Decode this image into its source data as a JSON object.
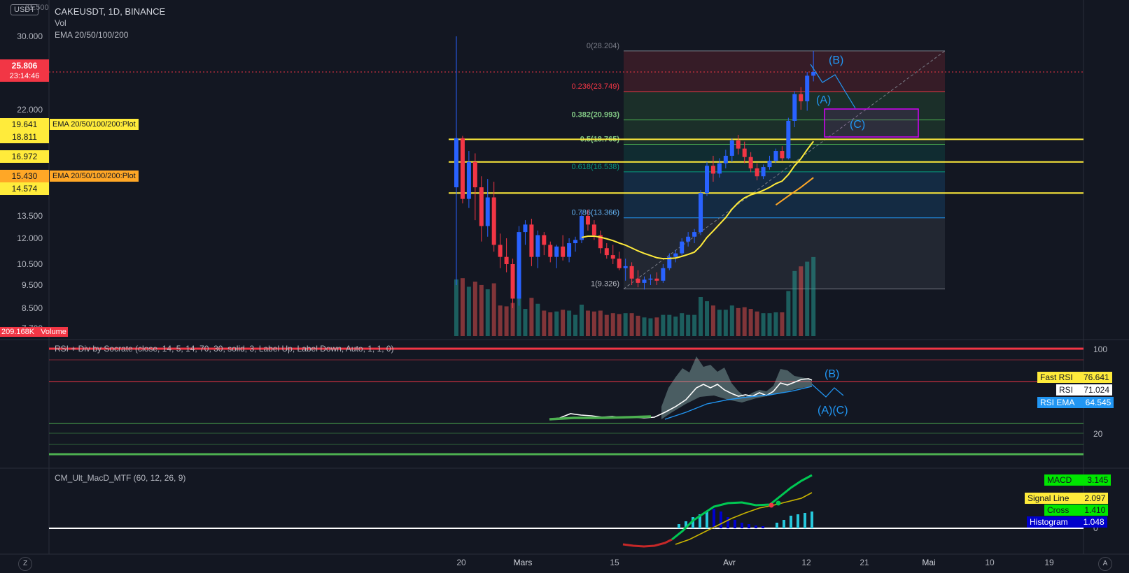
{
  "header": {
    "currency": "USDT",
    "symbol_line": "CAKEUSDT, 1D, BINANCE",
    "indicator_vol": "Vol",
    "indicator_ema": "EMA 20/50/100/200",
    "top_partial_price": "31.500"
  },
  "price_axis": {
    "ticks": [
      "30.000",
      "22.000",
      "13.500",
      "12.000",
      "10.500",
      "9.500",
      "8.500",
      "7.700"
    ],
    "current_price": "25.806",
    "countdown": "23:14:46",
    "volume_label": "209.168K",
    "volume_title": "Volume",
    "colors": {
      "current": "#f23645",
      "yellow": "#ffeb3b",
      "orange": "#ffa726"
    }
  },
  "ema_labels": [
    {
      "price": "19.641",
      "text": "EMA 20/50/100/200:Plot",
      "color": "#ffeb3b"
    },
    {
      "price": "18.811",
      "text": "",
      "color": "#ffeb3b"
    },
    {
      "price": "16.972",
      "text": "",
      "color": "#ffeb3b"
    },
    {
      "price": "15.430",
      "text": "EMA 20/50/100/200:Plot",
      "color": "#ffa726"
    },
    {
      "price": "14.574",
      "text": "",
      "color": "#ffeb3b"
    }
  ],
  "fib_levels": [
    {
      "label": "0(28.204)",
      "value": 28.204
    },
    {
      "label": "0.236(23.749)",
      "value": 23.749
    },
    {
      "label": "0.382(20.993)",
      "value": 20.993
    },
    {
      "label": "0.5(18.765)",
      "value": 18.765
    },
    {
      "label": "0.618(16.538)",
      "value": 16.538
    },
    {
      "label": "0.786(13.366)",
      "value": 13.366
    },
    {
      "label": "1(9.326)",
      "value": 9.326
    }
  ],
  "horizontal_lines": [
    19.2,
    17.3,
    15.0
  ],
  "wave_labels": {
    "b": "(B)",
    "a": "(A)",
    "c": "(C)"
  },
  "time_axis": {
    "labels": [
      "20",
      "Mars",
      "15",
      "Avr",
      "12",
      "21",
      "Mai",
      "10",
      "19"
    ]
  },
  "rsi": {
    "title": "RSI + Div by Socrate (close, 14, 5, 14, 70, 30, solid, 3, Label Up, Label Down, Auto, 1, 1, 0)",
    "axis_top": "100",
    "axis_bottom": "20",
    "wave_b": "(B)",
    "wave_ac": "(A)(C)",
    "labels": [
      {
        "key": "Fast RSI",
        "value": "76.641",
        "color": "#ffeb3b"
      },
      {
        "key": "RSI",
        "value": "71.024",
        "color": "#ffffff"
      },
      {
        "key": "RSI EMA",
        "value": "64.545",
        "color": "#2196f3"
      }
    ]
  },
  "macd": {
    "title": "CM_Ult_MacD_MTF (60, 12, 26, 9)",
    "axis_zero": "0",
    "labels": [
      {
        "key": "MACD",
        "value": "3.145",
        "color": "#00e600"
      },
      {
        "key": "Signal Line",
        "value": "2.097",
        "color": "#ffeb3b"
      },
      {
        "key": "Cross",
        "value": "1.410",
        "color": "#00e600"
      },
      {
        "key": "Histogram",
        "value": "1.048",
        "color": "#0000cc"
      }
    ]
  },
  "corner": {
    "left": "Z",
    "right": "A"
  },
  "chart_data": {
    "type": "candlestick",
    "title": "CAKEUSDT, 1D, BINANCE",
    "ylim": [
      7.7,
      31.5
    ],
    "x_labels": [
      "20",
      "Mars",
      "15",
      "Avr",
      "12",
      "21",
      "Mai",
      "10",
      "19"
    ],
    "last_close": 25.806,
    "candles": [
      [
        15.4,
        30.0,
        9.5,
        19.3
      ],
      [
        19.3,
        19.5,
        14.3,
        14.6
      ],
      [
        14.6,
        18.2,
        14.0,
        17.3
      ],
      [
        17.3,
        18.0,
        13.2,
        15.4
      ],
      [
        15.4,
        16.2,
        11.8,
        12.8
      ],
      [
        12.8,
        16.0,
        12.1,
        14.7
      ],
      [
        14.7,
        15.8,
        11.2,
        11.6
      ],
      [
        11.6,
        12.3,
        10.3,
        10.9
      ],
      [
        10.9,
        12.0,
        10.1,
        10.5
      ],
      [
        10.5,
        10.8,
        8.5,
        8.9
      ],
      [
        8.9,
        12.8,
        8.6,
        12.4
      ],
      [
        12.4,
        13.2,
        11.6,
        12.9
      ],
      [
        12.9,
        13.3,
        10.4,
        10.9
      ],
      [
        10.9,
        12.5,
        10.3,
        12.2
      ],
      [
        12.2,
        12.4,
        11.0,
        11.6
      ],
      [
        11.6,
        11.8,
        10.6,
        10.9
      ],
      [
        10.9,
        11.6,
        10.3,
        11.5
      ],
      [
        11.5,
        12.2,
        10.7,
        10.9
      ],
      [
        10.9,
        12.0,
        10.6,
        11.7
      ],
      [
        11.7,
        12.1,
        11.2,
        11.9
      ],
      [
        11.9,
        13.8,
        11.7,
        13.5
      ],
      [
        13.5,
        13.9,
        12.5,
        12.9
      ],
      [
        12.9,
        13.2,
        11.9,
        12.2
      ],
      [
        12.2,
        12.5,
        11.1,
        11.4
      ],
      [
        11.4,
        11.7,
        10.8,
        11.0
      ],
      [
        11.0,
        11.6,
        10.5,
        10.8
      ],
      [
        10.8,
        11.2,
        10.2,
        10.3
      ],
      [
        10.3,
        10.8,
        9.7,
        10.4
      ],
      [
        10.4,
        10.6,
        9.5,
        9.8
      ],
      [
        9.8,
        10.2,
        9.4,
        9.6
      ],
      [
        9.6,
        9.9,
        9.3,
        9.75
      ],
      [
        9.75,
        10.0,
        9.5,
        9.8
      ],
      [
        9.8,
        10.1,
        9.5,
        9.7
      ],
      [
        9.7,
        10.5,
        9.6,
        10.3
      ],
      [
        10.3,
        11.1,
        10.2,
        10.9
      ],
      [
        10.9,
        11.3,
        10.6,
        11.1
      ],
      [
        11.1,
        12.0,
        10.9,
        11.8
      ],
      [
        11.8,
        12.4,
        11.5,
        12.1
      ],
      [
        12.1,
        12.6,
        11.7,
        12.4
      ],
      [
        12.4,
        15.2,
        12.2,
        15.0
      ],
      [
        15.0,
        17.3,
        14.8,
        17.0
      ],
      [
        17.0,
        17.8,
        15.8,
        16.4
      ],
      [
        16.4,
        17.6,
        16.1,
        17.2
      ],
      [
        17.2,
        18.3,
        16.8,
        17.8
      ],
      [
        17.8,
        19.3,
        17.3,
        19.1
      ],
      [
        19.1,
        19.6,
        17.9,
        18.4
      ],
      [
        18.4,
        19.0,
        17.2,
        17.7
      ],
      [
        17.7,
        18.1,
        16.5,
        16.8
      ],
      [
        16.8,
        17.2,
        15.9,
        16.2
      ],
      [
        16.2,
        17.1,
        16.0,
        16.9
      ],
      [
        16.9,
        17.8,
        16.7,
        17.4
      ],
      [
        17.4,
        18.4,
        17.2,
        18.2
      ],
      [
        18.2,
        18.6,
        17.4,
        17.6
      ],
      [
        17.6,
        21.2,
        17.5,
        20.9
      ],
      [
        20.9,
        23.8,
        20.3,
        23.5
      ],
      [
        23.5,
        24.2,
        22.0,
        22.8
      ],
      [
        22.8,
        25.8,
        21.9,
        25.4
      ],
      [
        25.4,
        28.2,
        24.8,
        25.806
      ]
    ],
    "volume_max": 209.168
  }
}
